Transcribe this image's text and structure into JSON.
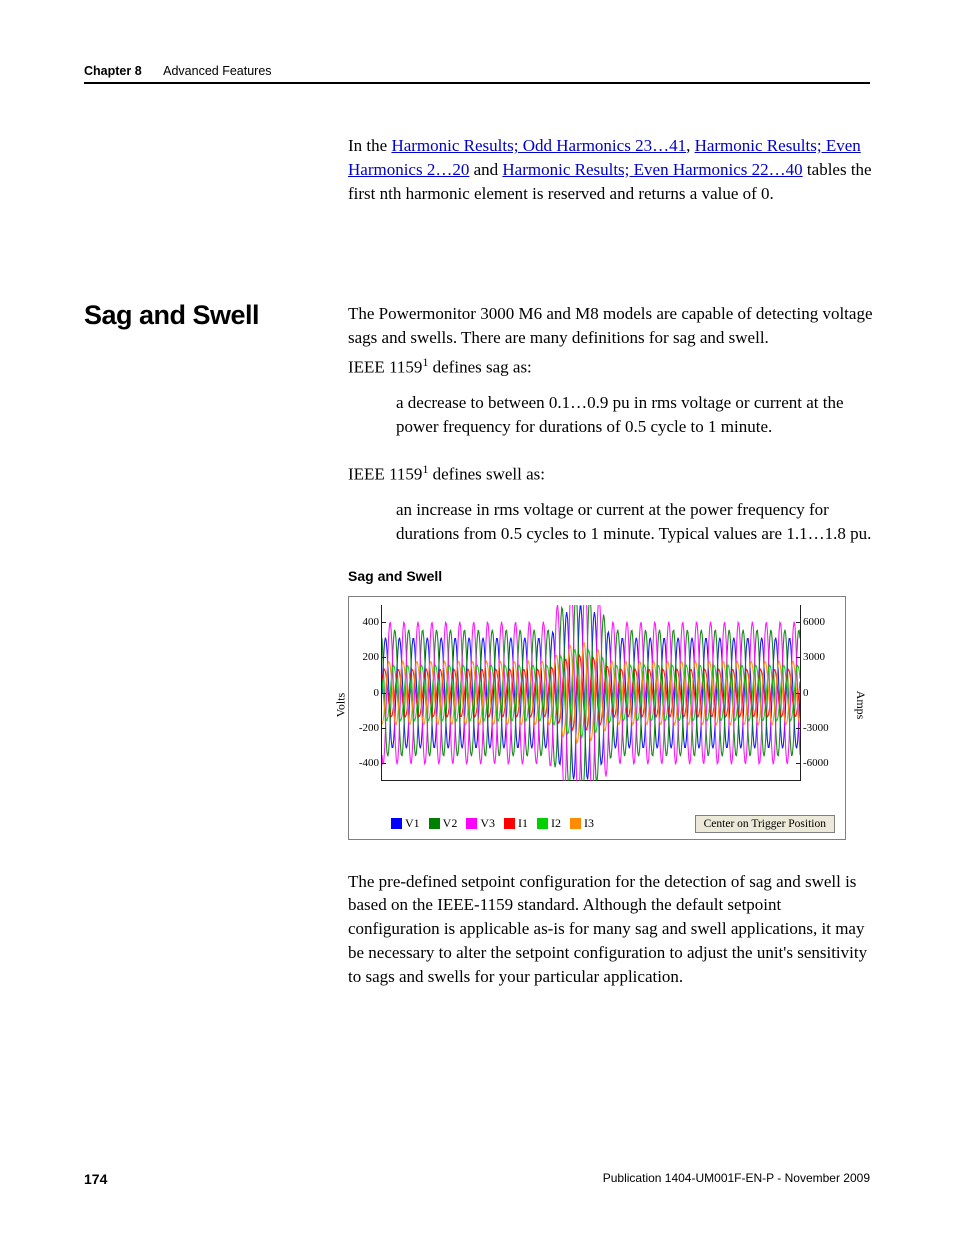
{
  "header": {
    "chapter_label": "Chapter 8",
    "chapter_title": "Advanced Features"
  },
  "intro_para": {
    "prefix": "In the ",
    "link1": "Harmonic Results; Odd Harmonics 23…41",
    "sep1": ", ",
    "link2": "Harmonic Results; Even Harmonics 2…20",
    "sep2": " and ",
    "link3": "Harmonic Results; Even Harmonics 22…40",
    "suffix": " tables the first nth harmonic element is reserved and returns a value of 0."
  },
  "section": {
    "heading": "Sag and Swell",
    "p1": "The Powermonitor 3000 M6 and M8 models are capable of detecting voltage sags and swells. There are many definitions for sag and swell.",
    "p2_pre": "IEEE 1159",
    "p2_sup": "1",
    "p2_post": " defines sag as:",
    "def_sag": "a decrease to between 0.1…0.9 pu in rms voltage or current at the power frequency for durations of 0.5 cycle to 1 minute.",
    "p3_pre": "IEEE 1159",
    "p3_sup": "1",
    "p3_post": " defines swell as:",
    "def_swell": "an increase in rms voltage or current at the power frequency for durations from 0.5 cycles to 1 minute. Typical values are 1.1…1.8 pu.",
    "figure_title": "Sag and Swell",
    "p_after": "The pre-defined setpoint configuration for the detection of sag and swell is based on the IEEE-1159 standard. Although the default setpoint configuration is applicable as-is for many sag and swell applications, it may be necessary to alter the setpoint configuration to adjust the unit's sensitivity to sags and swells for your particular application."
  },
  "chart": {
    "type": "line",
    "ylabel_left": "Volts",
    "ylabel_right": "Amps",
    "left_ticks": [
      {
        "v": 400,
        "pos": 0.9
      },
      {
        "v": 200,
        "pos": 0.7
      },
      {
        "v": 0,
        "pos": 0.5
      },
      {
        "v": -200,
        "pos": 0.3
      },
      {
        "v": -400,
        "pos": 0.1
      }
    ],
    "right_ticks": [
      {
        "v": 6000,
        "pos": 0.9
      },
      {
        "v": 3000,
        "pos": 0.7
      },
      {
        "v": 0,
        "pos": 0.5
      },
      {
        "v": -3000,
        "pos": 0.3
      },
      {
        "v": -6000,
        "pos": 0.1
      }
    ],
    "series": [
      {
        "name": "V1",
        "color": "#0000ff",
        "amp": 0.7,
        "freq": 30,
        "phase": 0.0
      },
      {
        "name": "V2",
        "color": "#008000",
        "amp": 0.8,
        "freq": 30,
        "phase": 2.1
      },
      {
        "name": "V3",
        "color": "#ff00ff",
        "amp": 0.9,
        "freq": 30,
        "phase": 4.2
      },
      {
        "name": "I1",
        "color": "#ff0000",
        "amp": 0.3,
        "freq": 30,
        "phase": 0.5
      },
      {
        "name": "I2",
        "color": "#00d000",
        "amp": 0.35,
        "freq": 30,
        "phase": 2.6
      },
      {
        "name": "I3",
        "color": "#ff8c00",
        "amp": 0.4,
        "freq": 30,
        "phase": 4.7
      }
    ],
    "disturbance": {
      "start": 0.4,
      "end": 0.55,
      "scale": 1.6
    },
    "legend_button": "Center on Trigger Position",
    "stroke_width": 1.1,
    "opacity": 0.9,
    "samples": 500,
    "background_color": "#ffffff",
    "axis_color": "#202020"
  },
  "footer": {
    "page_number": "174",
    "publication": "Publication 1404-UM001F-EN-P - November 2009"
  }
}
